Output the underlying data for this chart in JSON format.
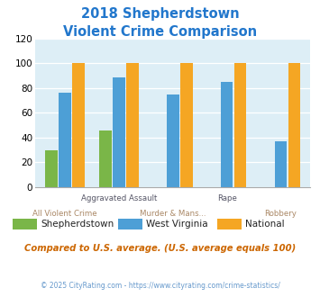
{
  "title_line1": "2018 Shepherdstown",
  "title_line2": "Violent Crime Comparison",
  "title_color": "#2277cc",
  "categories": [
    "All Violent Crime",
    "Aggravated Assault",
    "Murder & Mans...",
    "Rape",
    "Robbery"
  ],
  "series": {
    "Shepherdstown": [
      30,
      46,
      0,
      0,
      0
    ],
    "West Virginia": [
      76,
      89,
      75,
      85,
      37
    ],
    "National": [
      100,
      100,
      100,
      100,
      100
    ]
  },
  "colors": {
    "Shepherdstown": "#7ab648",
    "West Virginia": "#4d9fd6",
    "National": "#f5a623"
  },
  "ylim": [
    0,
    120
  ],
  "yticks": [
    0,
    20,
    40,
    60,
    80,
    100,
    120
  ],
  "plot_bg": "#ddeef6",
  "legend_note": "Compared to U.S. average. (U.S. average equals 100)",
  "footer": "© 2025 CityRating.com - https://www.cityrating.com/crime-statistics/",
  "bar_width": 0.25
}
